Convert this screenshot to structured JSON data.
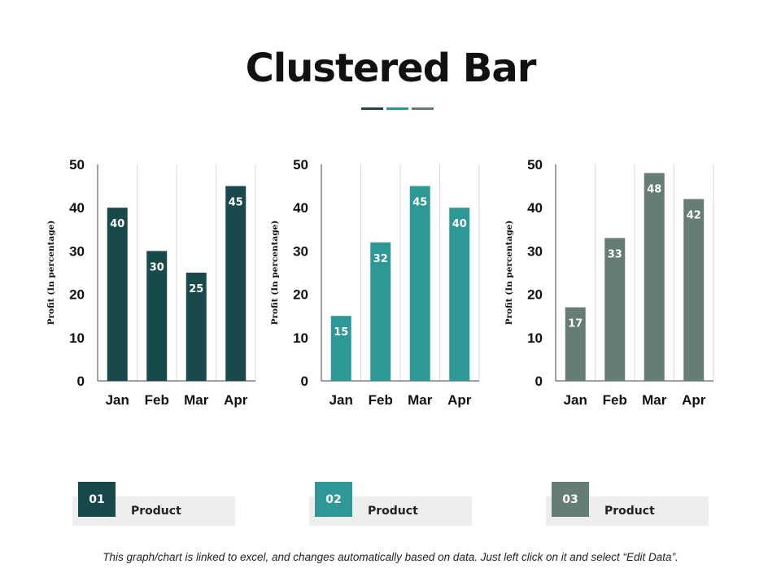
{
  "title": "Clustered Bar",
  "colors": {
    "series1": "#184a4c",
    "series2": "#2e9896",
    "series3": "#667d73",
    "grid": "#d9d9d9",
    "axis": "#404040"
  },
  "chart_data": [
    {
      "type": "bar",
      "title": "",
      "xlabel": "",
      "ylabel": "Profit  (In percentage)",
      "categories": [
        "Jan",
        "Feb",
        "Mar",
        "Apr"
      ],
      "values": [
        40,
        30,
        25,
        45
      ],
      "data_labels": [
        "40",
        "30",
        "25",
        "45"
      ],
      "yticks": [
        "0",
        "10",
        "20",
        "30",
        "40",
        "50"
      ],
      "ylim": [
        0,
        50
      ],
      "color": "#184a4c",
      "grid": true
    },
    {
      "type": "bar",
      "title": "",
      "xlabel": "",
      "ylabel": "Profit  (In percentage)",
      "categories": [
        "Jan",
        "Feb",
        "Mar",
        "Apr"
      ],
      "values": [
        15,
        32,
        45,
        40
      ],
      "data_labels": [
        "15",
        "32",
        "45",
        "40"
      ],
      "yticks": [
        "0",
        "10",
        "20",
        "30",
        "40",
        "50"
      ],
      "ylim": [
        0,
        50
      ],
      "color": "#2e9896",
      "grid": true
    },
    {
      "type": "bar",
      "title": "",
      "xlabel": "",
      "ylabel": "Profit  (In percentage)",
      "categories": [
        "Jan",
        "Feb",
        "Mar",
        "Apr"
      ],
      "values": [
        17,
        33,
        48,
        42
      ],
      "data_labels": [
        "17",
        "33",
        "48",
        "42"
      ],
      "yticks": [
        "0",
        "10",
        "20",
        "30",
        "40",
        "50"
      ],
      "ylim": [
        0,
        50
      ],
      "color": "#667d73",
      "grid": true
    }
  ],
  "legend": [
    {
      "number": "01",
      "label": "Product",
      "color": "#184a4c"
    },
    {
      "number": "02",
      "label": "Product",
      "color": "#2e9896"
    },
    {
      "number": "03",
      "label": "Product",
      "color": "#667d73"
    }
  ],
  "footer": "This graph/chart is linked to excel, and changes automatically based on data. Just left click on it and select “Edit Data”."
}
